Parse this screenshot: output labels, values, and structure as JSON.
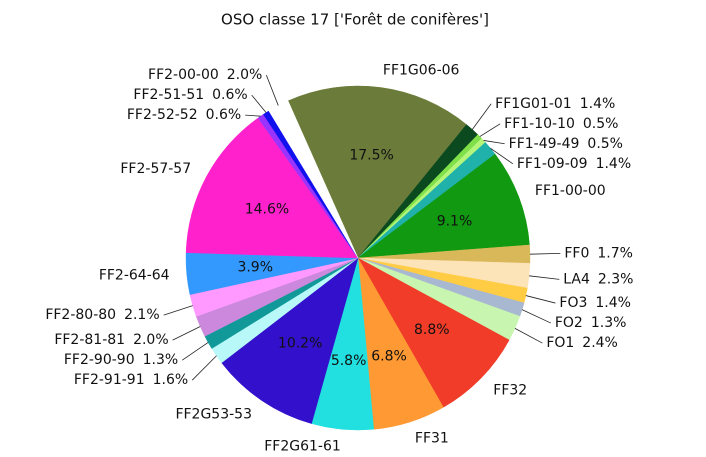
{
  "chart_data": {
    "type": "pie",
    "title": "OSO classe 17 ['Forêt de conifères']",
    "categories": [
      "FF1G06-06",
      "FF1G01-01",
      "FF1-10-10",
      "FF1-49-49",
      "FF1-09-09",
      "FF1-00-00",
      "FF0",
      "LA4",
      "FO3",
      "FO2",
      "FO1",
      "FF32",
      "FF31",
      "FF2G61-61",
      "FF2G53-53",
      "FF2-91-91",
      "FF2-90-90",
      "FF2-81-81",
      "FF2-80-80",
      "FF2-64-64",
      "FF2-57-57",
      "FF2-52-52",
      "FF2-51-51",
      "FF2-00-00"
    ],
    "values": [
      17.5,
      1.4,
      0.5,
      0.5,
      1.4,
      9.1,
      1.7,
      2.3,
      1.4,
      1.3,
      2.4,
      8.8,
      6.8,
      5.8,
      10.2,
      1.6,
      1.3,
      2.0,
      2.1,
      3.9,
      14.6,
      0.6,
      0.6,
      2.0
    ],
    "value_labels": [
      "17.5%",
      "1.4%",
      "0.5%",
      "0.5%",
      "1.4%",
      "9.1%",
      "1.7%",
      "2.3%",
      "1.4%",
      "1.3%",
      "2.4%",
      "8.8%",
      "6.8%",
      "5.8%",
      "10.2%",
      "1.6%",
      "1.3%",
      "2.0%",
      "2.1%",
      "3.9%",
      "14.6%",
      "0.6%",
      "0.6%",
      "2.0%"
    ],
    "colors": [
      "#6b7b3a",
      "#0b4a1e",
      "#7fe04a",
      "#b4f57a",
      "#20b2aa",
      "#119911",
      "#d9b85a",
      "#fde3b8",
      "#ffcc44",
      "#a8b8d0",
      "#c8f5b0",
      "#f03c28",
      "#ff9933",
      "#22e0e0",
      "#3311cc",
      "#b8f8f8",
      "#119999",
      "#cc88dd",
      "#ff99ff",
      "#3399ff",
      "#ff22cc",
      "#9933ff",
      "#1111ee",
      "#ffffff"
    ]
  }
}
